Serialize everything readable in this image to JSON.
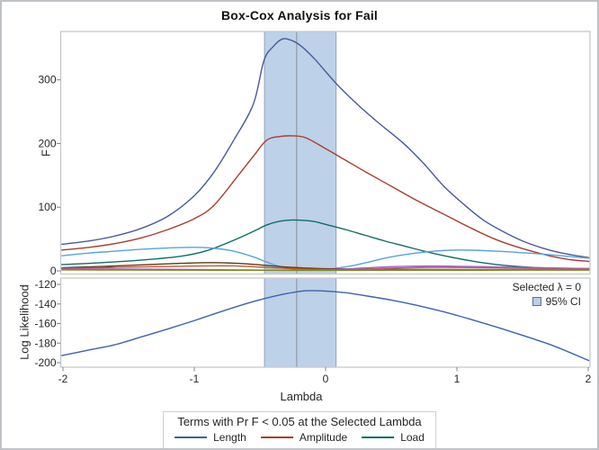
{
  "title": "Box-Cox Analysis for Fail",
  "colors": {
    "band_fill": "#bdd1e8",
    "band_edge": "#93a2b8",
    "ref_line": "#8f959c",
    "panel_border": "#c6c9cc",
    "figure_border": "#bfc3c7",
    "tick": "#808487",
    "text": "#262626"
  },
  "legend": {
    "title": "Terms with Pr F < 0.05 at the Selected Lambda",
    "items": [
      {
        "label": "Length",
        "color": "#4a5a9c"
      },
      {
        "label": "Amplitude",
        "color": "#a93e2f"
      },
      {
        "label": "Load",
        "color": "#0f6e66"
      }
    ]
  },
  "chart_data": [
    {
      "type": "line",
      "panel": "F",
      "xlabel": "Lambda",
      "ylabel": "F",
      "xlim": [
        -2,
        2
      ],
      "ylim": [
        0,
        376
      ],
      "xticks": [
        -2,
        -1,
        0,
        1,
        2
      ],
      "yticks": [
        0,
        100,
        200,
        300
      ],
      "grid": false,
      "selected_lambda": -0.22,
      "ci_band": [
        -0.465,
        0.08
      ],
      "series": [
        {
          "name": "Length",
          "color": "#4a5a9c",
          "points": [
            [
              -2,
              42
            ],
            [
              -1.8,
              47
            ],
            [
              -1.6,
              55
            ],
            [
              -1.4,
              67
            ],
            [
              -1.2,
              86
            ],
            [
              -1.0,
              118
            ],
            [
              -0.85,
              155
            ],
            [
              -0.7,
              205
            ],
            [
              -0.55,
              262
            ],
            [
              -0.47,
              330
            ],
            [
              -0.4,
              352
            ],
            [
              -0.33,
              364
            ],
            [
              -0.26,
              362
            ],
            [
              -0.18,
              352
            ],
            [
              -0.08,
              332
            ],
            [
              0,
              313
            ],
            [
              0.1,
              290
            ],
            [
              0.25,
              260
            ],
            [
              0.4,
              233
            ],
            [
              0.6,
              199
            ],
            [
              0.75,
              168
            ],
            [
              0.9,
              133
            ],
            [
              1.05,
              105
            ],
            [
              1.2,
              80
            ],
            [
              1.35,
              62
            ],
            [
              1.5,
              47
            ],
            [
              1.65,
              36
            ],
            [
              1.8,
              28
            ],
            [
              2,
              21
            ]
          ]
        },
        {
          "name": "Amplitude",
          "color": "#a93e2f",
          "points": [
            [
              -2,
              33
            ],
            [
              -1.8,
              37
            ],
            [
              -1.6,
              43
            ],
            [
              -1.4,
              52
            ],
            [
              -1.2,
              65
            ],
            [
              -1.0,
              82
            ],
            [
              -0.85,
              103
            ],
            [
              -0.65,
              154
            ],
            [
              -0.55,
              180
            ],
            [
              -0.45,
              205
            ],
            [
              -0.35,
              211
            ],
            [
              -0.25,
              212
            ],
            [
              -0.15,
              209
            ],
            [
              0,
              192
            ],
            [
              0.15,
              174
            ],
            [
              0.3,
              156
            ],
            [
              0.5,
              133
            ],
            [
              0.7,
              110
            ],
            [
              0.9,
              89
            ],
            [
              1.1,
              68
            ],
            [
              1.3,
              49
            ],
            [
              1.5,
              35
            ],
            [
              1.7,
              24
            ],
            [
              1.85,
              18
            ],
            [
              2,
              15
            ]
          ]
        },
        {
          "name": "Load",
          "color": "#0f6e66",
          "points": [
            [
              -2,
              10
            ],
            [
              -1.7,
              13
            ],
            [
              -1.4,
              17
            ],
            [
              -1.1,
              23
            ],
            [
              -0.9,
              32
            ],
            [
              -0.7,
              48
            ],
            [
              -0.55,
              62
            ],
            [
              -0.45,
              72
            ],
            [
              -0.35,
              78
            ],
            [
              -0.25,
              80
            ],
            [
              -0.1,
              78
            ],
            [
              0,
              73
            ],
            [
              0.15,
              65
            ],
            [
              0.3,
              56
            ],
            [
              0.45,
              47
            ],
            [
              0.6,
              39
            ],
            [
              0.75,
              31
            ],
            [
              0.9,
              24
            ],
            [
              1.1,
              16
            ],
            [
              1.3,
              10
            ],
            [
              1.5,
              6.5
            ],
            [
              1.7,
              4.5
            ],
            [
              2,
              3.5
            ]
          ]
        },
        {
          "name": "",
          "id": "term-lightblue",
          "color": "#55a3e4",
          "points": [
            [
              -2,
              24
            ],
            [
              -1.8,
              28
            ],
            [
              -1.6,
              31
            ],
            [
              -1.4,
              34
            ],
            [
              -1.2,
              36
            ],
            [
              -1.0,
              37
            ],
            [
              -0.85,
              35.5
            ],
            [
              -0.7,
              31
            ],
            [
              -0.55,
              22
            ],
            [
              -0.45,
              14
            ],
            [
              -0.35,
              7
            ],
            [
              -0.25,
              3
            ],
            [
              -0.15,
              2
            ],
            [
              -0.05,
              2
            ],
            [
              0.05,
              3.5
            ],
            [
              0.2,
              8
            ],
            [
              0.35,
              15
            ],
            [
              0.5,
              22
            ],
            [
              0.65,
              27
            ],
            [
              0.8,
              30.5
            ],
            [
              0.95,
              32.5
            ],
            [
              1.1,
              32.5
            ],
            [
              1.3,
              31
            ],
            [
              1.5,
              28.5
            ],
            [
              1.7,
              25.5
            ],
            [
              2,
              20
            ]
          ]
        },
        {
          "name": "",
          "id": "term-brown",
          "color": "#5f3a14",
          "points": [
            [
              -2,
              5
            ],
            [
              -1.7,
              7
            ],
            [
              -1.4,
              9.5
            ],
            [
              -1.15,
              11.5
            ],
            [
              -0.95,
              12.8
            ],
            [
              -0.8,
              12.8
            ],
            [
              -0.6,
              11
            ],
            [
              -0.45,
              8.5
            ],
            [
              -0.3,
              6
            ],
            [
              -0.15,
              4.5
            ],
            [
              0,
              3.5
            ],
            [
              0.3,
              2.8
            ],
            [
              0.6,
              2.4
            ],
            [
              1,
              2.2
            ],
            [
              1.5,
              2
            ],
            [
              2,
              2
            ]
          ]
        },
        {
          "name": "",
          "id": "term-orange",
          "color": "#bf5b28",
          "points": [
            [
              -2,
              4
            ],
            [
              -1.6,
              5.5
            ],
            [
              -1.2,
              7
            ],
            [
              -0.9,
              7.8
            ],
            [
              -0.7,
              7.8
            ],
            [
              -0.5,
              6
            ],
            [
              -0.3,
              4
            ],
            [
              -0.1,
              2.5
            ],
            [
              0.1,
              2
            ],
            [
              0.5,
              1.8
            ],
            [
              1,
              1.8
            ],
            [
              1.5,
              1.8
            ],
            [
              2,
              1.8
            ]
          ]
        },
        {
          "name": "",
          "id": "term-violet",
          "color": "#a55cc9",
          "points": [
            [
              -2,
              3
            ],
            [
              -1.5,
              2.8
            ],
            [
              -1,
              2.2
            ],
            [
              -0.6,
              1.5
            ],
            [
              -0.3,
              1.2
            ],
            [
              0,
              1.8
            ],
            [
              0.2,
              3.5
            ],
            [
              0.4,
              5.8
            ],
            [
              0.6,
              7.2
            ],
            [
              0.8,
              7.6
            ],
            [
              1,
              7.2
            ],
            [
              1.3,
              6.2
            ],
            [
              1.6,
              5
            ],
            [
              2,
              3.8
            ]
          ]
        },
        {
          "name": "",
          "id": "term-rose",
          "color": "#b26084",
          "points": [
            [
              -2,
              2
            ],
            [
              -1.5,
              1.8
            ],
            [
              -1,
              1.4
            ],
            [
              -0.5,
              1
            ],
            [
              -0.1,
              1
            ],
            [
              0.2,
              2.2
            ],
            [
              0.45,
              4
            ],
            [
              0.7,
              5.2
            ],
            [
              0.9,
              5.5
            ],
            [
              1.1,
              5.2
            ],
            [
              1.4,
              4.4
            ],
            [
              1.7,
              3.6
            ],
            [
              2,
              3
            ]
          ]
        },
        {
          "name": "",
          "id": "term-olive",
          "color": "#7f8e1f",
          "points": [
            [
              -2,
              1.5
            ],
            [
              -1.5,
              1.3
            ],
            [
              -1,
              1.1
            ],
            [
              -0.5,
              0.9
            ],
            [
              0,
              0.8
            ],
            [
              0.5,
              0.9
            ],
            [
              1,
              1
            ],
            [
              1.5,
              1.1
            ],
            [
              2,
              1.2
            ]
          ]
        }
      ]
    },
    {
      "type": "line",
      "panel": "Log Likelihood",
      "xlabel": "Lambda",
      "ylabel": "Log Likelihood",
      "xlim": [
        -2,
        2
      ],
      "ylim": [
        -205,
        -113
      ],
      "yticks": [
        -120,
        -140,
        -160,
        -180,
        -200
      ],
      "grid": false,
      "selected_lambda": -0.22,
      "ci_band": [
        -0.465,
        0.08
      ],
      "inset": {
        "selected_label": "Selected λ = 0",
        "ci_label": "95% CI",
        "ci_swatch_fill": "#b9cfe7",
        "ci_swatch_border": "#5f6f8a"
      },
      "series": [
        {
          "name": "Log Likelihood",
          "color": "#3a62b5",
          "points": [
            [
              -2,
              -192.5
            ],
            [
              -1.8,
              -187
            ],
            [
              -1.6,
              -181.5
            ],
            [
              -1.4,
              -173.5
            ],
            [
              -1.2,
              -165.5
            ],
            [
              -1.0,
              -157
            ],
            [
              -0.8,
              -148
            ],
            [
              -0.6,
              -139.5
            ],
            [
              -0.45,
              -134
            ],
            [
              -0.3,
              -129.5
            ],
            [
              -0.15,
              -126.5
            ],
            [
              0,
              -126.8
            ],
            [
              0.15,
              -128.5
            ],
            [
              0.3,
              -131.5
            ],
            [
              0.5,
              -136
            ],
            [
              0.7,
              -141.5
            ],
            [
              0.9,
              -148
            ],
            [
              1.1,
              -155.5
            ],
            [
              1.3,
              -163.5
            ],
            [
              1.5,
              -172
            ],
            [
              1.7,
              -181
            ],
            [
              1.85,
              -189
            ],
            [
              2,
              -197.5
            ]
          ]
        }
      ]
    }
  ]
}
